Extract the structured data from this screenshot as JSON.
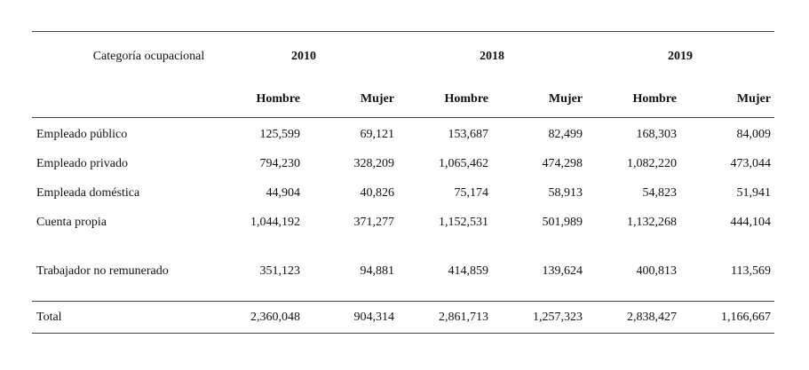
{
  "header": {
    "category_label": "Categoría ocupacional",
    "years": [
      "2010",
      "2018",
      "2019"
    ],
    "sexes": [
      "Hombre",
      "Mujer"
    ]
  },
  "rows": [
    {
      "label": "Empleado público",
      "values": [
        "125,599",
        "69,121",
        "153,687",
        "82,499",
        "168,303",
        "84,009"
      ]
    },
    {
      "label": "Empleado privado",
      "values": [
        "794,230",
        "328,209",
        "1,065,462",
        "474,298",
        "1,082,220",
        "473,044"
      ]
    },
    {
      "label": "Empleada doméstica",
      "values": [
        "44,904",
        "40,826",
        "75,174",
        "58,913",
        "54,823",
        "51,941"
      ]
    },
    {
      "label": "Cuenta propia",
      "values": [
        "1,044,192",
        "371,277",
        "1,152,531",
        "501,989",
        "1,132,268",
        "444,104"
      ]
    },
    {
      "label": "Trabajador no remunerado",
      "values": [
        "351,123",
        "94,881",
        "414,859",
        "139,624",
        "400,813",
        "113,569"
      ]
    }
  ],
  "total": {
    "label": "Total",
    "values": [
      "2,360,048",
      "904,314",
      "2,861,713",
      "1,257,323",
      "2,838,427",
      "1,166,667"
    ]
  }
}
